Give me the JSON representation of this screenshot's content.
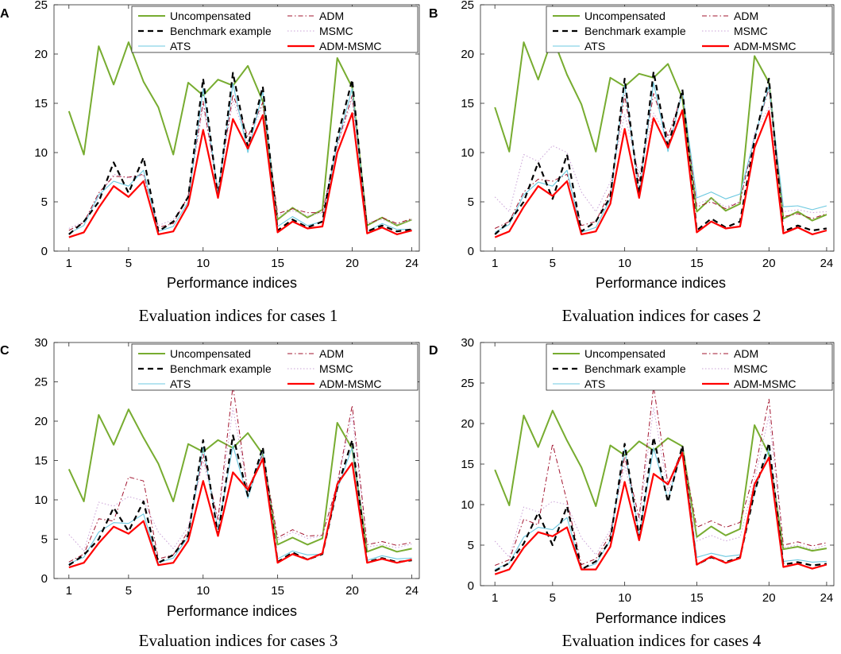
{
  "chart_data": [
    {
      "type": "line",
      "panel_label": "A",
      "title": "Evaluation indices for cases 1",
      "xlabel": "Performance indices",
      "ylabel": "",
      "xlim": [
        0,
        24.5
      ],
      "ylim": [
        0,
        25
      ],
      "xticks": [
        1,
        5,
        10,
        15,
        20,
        24
      ],
      "yticks": [
        0,
        5,
        10,
        15,
        20,
        25
      ],
      "x": [
        1,
        2,
        3,
        4,
        5,
        6,
        7,
        8,
        9,
        10,
        11,
        12,
        13,
        14,
        15,
        16,
        17,
        18,
        19,
        20,
        21,
        22,
        23,
        24
      ],
      "legend": [
        "Uncompensated",
        "ADM",
        "Benchmark example",
        "MSMC",
        "ATS",
        "ADM-MSMC"
      ],
      "series": [
        {
          "name": "Uncompensated",
          "color": "#77ac30",
          "values": [
            14.2,
            9.8,
            20.8,
            16.9,
            21.2,
            17.2,
            14.6,
            9.8,
            17.1,
            15.8,
            17.4,
            16.8,
            18.8,
            15.2,
            3.2,
            4.4,
            3.4,
            4.2,
            19.6,
            16.6,
            2.6,
            3.4,
            2.6,
            3.2
          ]
        },
        {
          "name": "ADM",
          "color": "#a2142f",
          "values": [
            2.1,
            2.9,
            5.9,
            7.6,
            7.5,
            7.8,
            2.4,
            2.8,
            5.6,
            15.2,
            6.1,
            15.9,
            11.6,
            15.1,
            3.8,
            4.3,
            3.9,
            3.9,
            10.8,
            15.8,
            2.7,
            3.4,
            2.8,
            3.3
          ]
        },
        {
          "name": "Benchmark example",
          "color": "#000000",
          "values": [
            1.7,
            3.0,
            5.0,
            9.0,
            5.9,
            9.5,
            2.0,
            3.0,
            5.5,
            17.5,
            5.5,
            18.1,
            10.6,
            16.7,
            2.1,
            3.2,
            2.4,
            3.0,
            11.5,
            17.4,
            2.0,
            2.6,
            2.0,
            2.2
          ]
        },
        {
          "name": "MSMC",
          "color": "#c9a0d6",
          "values": [
            2.3,
            3.0,
            5.5,
            7.8,
            7.4,
            7.7,
            2.6,
            3.2,
            5.4,
            14.7,
            6.2,
            15.3,
            11.1,
            14.8,
            3.6,
            4.1,
            3.6,
            3.9,
            10.6,
            15.4,
            2.9,
            3.2,
            2.7,
            3.2
          ]
        },
        {
          "name": "ATS",
          "color": "#6cc9e0",
          "values": [
            1.8,
            2.6,
            5.7,
            7.1,
            6.6,
            8.2,
            2.0,
            2.5,
            5.0,
            16.5,
            5.9,
            17.0,
            10.0,
            16.2,
            2.5,
            3.5,
            2.6,
            3.0,
            11.0,
            16.5,
            2.0,
            2.8,
            2.2,
            2.2
          ]
        },
        {
          "name": "ADM-MSMC",
          "color": "#ff0000",
          "values": [
            1.4,
            1.9,
            4.4,
            6.6,
            5.5,
            7.1,
            1.7,
            2.0,
            4.7,
            12.3,
            5.4,
            13.4,
            10.4,
            13.8,
            1.9,
            3.0,
            2.3,
            2.5,
            10.0,
            14.0,
            1.8,
            2.4,
            1.7,
            2.1
          ]
        }
      ]
    },
    {
      "type": "line",
      "panel_label": "B",
      "title": "Evaluation indices for cases 2",
      "xlabel": "Performance indices",
      "ylabel": "",
      "xlim": [
        0,
        24.5
      ],
      "ylim": [
        0,
        25
      ],
      "xticks": [
        1,
        5,
        10,
        15,
        20,
        24
      ],
      "yticks": [
        0,
        5,
        10,
        15,
        20,
        25
      ],
      "x": [
        1,
        2,
        3,
        4,
        5,
        6,
        7,
        8,
        9,
        10,
        11,
        12,
        13,
        14,
        15,
        16,
        17,
        18,
        19,
        20,
        21,
        22,
        23,
        24
      ],
      "legend": [
        "Uncompensated",
        "ADM",
        "Benchmark example",
        "MSMC",
        "ATS",
        "ADM-MSMC"
      ],
      "series": [
        {
          "name": "Uncompensated",
          "color": "#77ac30",
          "values": [
            14.6,
            10.1,
            21.2,
            17.4,
            21.7,
            17.9,
            14.9,
            10.1,
            17.6,
            16.7,
            18.0,
            17.6,
            19.0,
            15.5,
            4.0,
            5.4,
            4.1,
            4.8,
            19.8,
            17.1,
            3.3,
            4.0,
            3.1,
            3.7
          ]
        },
        {
          "name": "ADM",
          "color": "#a2142f",
          "values": [
            2.3,
            3.0,
            6.0,
            7.3,
            7.1,
            7.8,
            2.6,
            3.0,
            6.1,
            15.8,
            7.0,
            16.0,
            11.6,
            16.0,
            4.5,
            5.0,
            4.3,
            5.0,
            11.6,
            16.5,
            3.5,
            3.8,
            3.3,
            3.8
          ]
        },
        {
          "name": "Benchmark example",
          "color": "#000000",
          "values": [
            1.7,
            3.0,
            5.0,
            9.0,
            5.3,
            9.8,
            2.0,
            3.0,
            5.5,
            17.5,
            5.8,
            18.2,
            10.5,
            16.4,
            2.1,
            3.3,
            2.4,
            3.0,
            11.3,
            17.5,
            2.0,
            2.6,
            2.1,
            2.3
          ]
        },
        {
          "name": "MSMC",
          "color": "#c9a0d6",
          "values": [
            5.5,
            4.0,
            9.8,
            9.1,
            10.7,
            10.0,
            6.0,
            4.0,
            7.0,
            13.9,
            7.8,
            14.0,
            11.5,
            14.2,
            4.8,
            5.3,
            4.5,
            5.0,
            12.0,
            14.6,
            4.0,
            4.2,
            3.9,
            4.0
          ]
        },
        {
          "name": "ATS",
          "color": "#6cc9e0",
          "values": [
            1.9,
            2.7,
            5.7,
            7.0,
            6.6,
            8.2,
            1.9,
            2.4,
            5.3,
            16.9,
            5.8,
            17.1,
            10.1,
            16.2,
            5.4,
            6.0,
            5.3,
            5.8,
            11.5,
            16.8,
            4.5,
            4.6,
            4.2,
            4.6
          ]
        },
        {
          "name": "ADM-MSMC",
          "color": "#ff0000",
          "values": [
            1.4,
            2.0,
            4.5,
            6.6,
            5.6,
            7.1,
            1.7,
            2.0,
            4.8,
            12.4,
            5.4,
            13.5,
            10.5,
            14.3,
            1.9,
            3.0,
            2.3,
            2.5,
            10.5,
            14.2,
            1.8,
            2.4,
            1.7,
            2.1
          ]
        }
      ]
    },
    {
      "type": "line",
      "panel_label": "C",
      "title": "Evaluation indices for cases 3",
      "xlabel": "Performance indices",
      "ylabel": "",
      "xlim": [
        0,
        24.5
      ],
      "ylim": [
        0,
        30
      ],
      "xticks": [
        1,
        5,
        10,
        15,
        20,
        24
      ],
      "yticks": [
        0,
        5,
        10,
        15,
        20,
        25,
        30
      ],
      "x": [
        1,
        2,
        3,
        4,
        5,
        6,
        7,
        8,
        9,
        10,
        11,
        12,
        13,
        14,
        15,
        16,
        17,
        18,
        19,
        20,
        21,
        22,
        23,
        24
      ],
      "legend": [
        "Uncompensated",
        "ADM",
        "Benchmark example",
        "MSMC",
        "ATS",
        "ADM-MSMC"
      ],
      "series": [
        {
          "name": "Uncompensated",
          "color": "#77ac30",
          "values": [
            13.9,
            9.8,
            20.8,
            17.0,
            21.5,
            17.9,
            14.6,
            9.8,
            17.1,
            16.1,
            17.6,
            16.6,
            18.5,
            15.8,
            4.3,
            5.2,
            4.3,
            5.1,
            19.8,
            16.5,
            3.4,
            4.1,
            3.4,
            3.8
          ]
        },
        {
          "name": "ADM",
          "color": "#a2142f",
          "values": [
            2.1,
            3.1,
            7.6,
            7.3,
            12.9,
            12.4,
            2.5,
            3.0,
            6.0,
            15.8,
            7.5,
            24.5,
            11.0,
            15.9,
            5.2,
            6.2,
            5.4,
            5.5,
            12.0,
            22.0,
            4.3,
            4.7,
            4.2,
            4.6
          ]
        },
        {
          "name": "Benchmark example",
          "color": "#000000",
          "values": [
            1.7,
            3.0,
            5.0,
            9.0,
            6.0,
            9.8,
            2.0,
            3.0,
            5.5,
            17.6,
            5.5,
            18.2,
            10.5,
            16.7,
            2.1,
            3.3,
            2.4,
            3.1,
            11.5,
            17.6,
            2.1,
            2.6,
            2.1,
            2.3
          ]
        },
        {
          "name": "MSMC",
          "color": "#c9a0d6",
          "values": [
            5.6,
            3.5,
            9.7,
            9.2,
            10.4,
            9.9,
            5.9,
            3.8,
            6.6,
            14.9,
            7.5,
            21.7,
            11.3,
            15.6,
            4.9,
            5.9,
            5.1,
            5.4,
            12.1,
            20.8,
            4.0,
            4.3,
            3.9,
            4.4
          ]
        },
        {
          "name": "ATS",
          "color": "#6cc9e0",
          "values": [
            1.9,
            2.7,
            5.9,
            7.1,
            7.0,
            8.2,
            2.0,
            2.6,
            5.3,
            16.7,
            6.2,
            16.9,
            10.2,
            16.3,
            2.5,
            3.5,
            3.0,
            3.1,
            11.3,
            16.7,
            2.3,
            2.9,
            2.5,
            2.6
          ]
        },
        {
          "name": "ADM-MSMC",
          "color": "#ff0000",
          "values": [
            1.4,
            2.0,
            4.5,
            6.6,
            5.7,
            7.3,
            1.7,
            2.0,
            4.8,
            12.4,
            5.4,
            13.5,
            11.3,
            15.2,
            2.0,
            3.1,
            2.4,
            3.2,
            12.0,
            14.7,
            2.0,
            2.5,
            2.0,
            2.4
          ]
        }
      ]
    },
    {
      "type": "line",
      "panel_label": "D",
      "title": "Evaluation indices for cases 4",
      "xlabel": "Performance indices",
      "ylabel": "",
      "xlim": [
        0,
        24.5
      ],
      "ylim": [
        0,
        30
      ],
      "xticks": [
        1,
        5,
        10,
        15,
        20,
        24
      ],
      "yticks": [
        0,
        5,
        10,
        15,
        20,
        25,
        30
      ],
      "x": [
        1,
        2,
        3,
        4,
        5,
        6,
        7,
        8,
        9,
        10,
        11,
        12,
        13,
        14,
        15,
        16,
        17,
        18,
        19,
        20,
        21,
        22,
        23,
        24
      ],
      "legend": [
        "Uncompensated",
        "ADM",
        "Benchmark example",
        "MSMC",
        "ATS",
        "ADM-MSMC"
      ],
      "series": [
        {
          "name": "Uncompensated",
          "color": "#77ac30",
          "values": [
            14.3,
            9.9,
            21.0,
            17.1,
            21.6,
            17.9,
            14.6,
            9.8,
            17.3,
            16.1,
            17.8,
            16.7,
            18.2,
            17.2,
            6.0,
            7.3,
            6.2,
            7.0,
            19.8,
            16.2,
            4.5,
            4.8,
            4.3,
            4.6
          ]
        },
        {
          "name": "ADM",
          "color": "#a2142f",
          "values": [
            2.5,
            3.2,
            8.2,
            7.5,
            17.5,
            10.4,
            2.6,
            3.3,
            6.3,
            15.9,
            8.4,
            24.6,
            12.5,
            16.8,
            7.2,
            8.0,
            7.2,
            7.8,
            14.0,
            23.0,
            5.0,
            5.4,
            4.9,
            5.3
          ]
        },
        {
          "name": "Benchmark example",
          "color": "#000000",
          "values": [
            1.8,
            2.8,
            5.2,
            9.0,
            5.0,
            9.8,
            2.0,
            3.0,
            5.6,
            17.5,
            6.0,
            18.3,
            10.3,
            17.3,
            2.6,
            3.5,
            2.9,
            3.5,
            11.5,
            17.6,
            2.6,
            2.9,
            2.5,
            2.7
          ]
        },
        {
          "name": "MSMC",
          "color": "#c9a0d6",
          "values": [
            5.5,
            3.5,
            9.7,
            9.1,
            10.4,
            10.0,
            5.9,
            3.8,
            6.9,
            14.8,
            7.8,
            22.0,
            11.7,
            16.2,
            5.5,
            6.2,
            5.5,
            6.0,
            13.0,
            21.0,
            4.7,
            5.0,
            4.5,
            5.0
          ]
        },
        {
          "name": "ATS",
          "color": "#6cc9e0",
          "values": [
            2.0,
            2.8,
            6.0,
            7.2,
            6.9,
            8.4,
            2.1,
            2.7,
            5.6,
            16.9,
            6.2,
            17.0,
            10.6,
            17.0,
            3.5,
            4.0,
            3.6,
            3.8,
            11.6,
            16.9,
            3.0,
            3.2,
            2.9,
            3.0
          ]
        },
        {
          "name": "ADM-MSMC",
          "color": "#ff0000",
          "values": [
            1.4,
            2.0,
            4.7,
            6.6,
            6.1,
            7.2,
            2.0,
            2.0,
            4.8,
            12.8,
            5.6,
            13.8,
            12.5,
            16.4,
            2.6,
            3.6,
            2.8,
            3.4,
            12.5,
            15.8,
            2.3,
            2.7,
            2.1,
            2.6
          ]
        }
      ]
    }
  ]
}
